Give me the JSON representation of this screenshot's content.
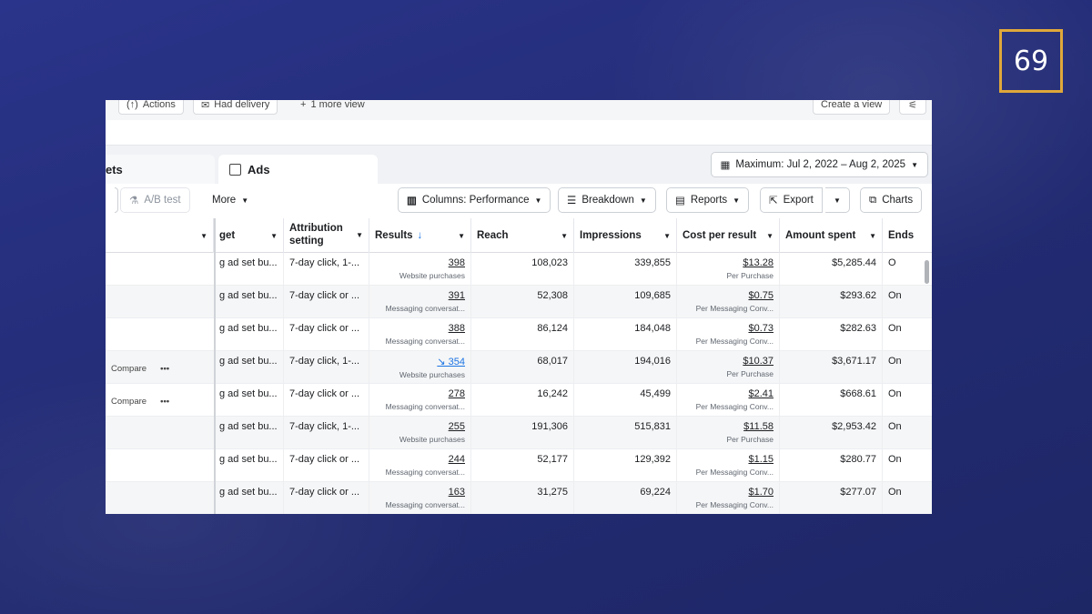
{
  "slide_number": "69",
  "top_chips": {
    "actions": "Actions",
    "had_delivery": "Had delivery",
    "more_view": "1 more view",
    "create_view": "Create a view"
  },
  "tabs": {
    "ad_sets_partial": "ets",
    "ads": "Ads"
  },
  "date_range": "Maximum: Jul 2, 2022 – Aug 2, 2025",
  "toolbar": {
    "ab_test": "A/B test",
    "more": "More",
    "columns": "Columns: Performance",
    "breakdown": "Breakdown",
    "reports": "Reports",
    "export": "Export",
    "charts": "Charts"
  },
  "columns": {
    "budget": "get",
    "attribution": "Attribution setting",
    "results": "Results",
    "reach": "Reach",
    "impressions": "Impressions",
    "cost_per_result": "Cost per result",
    "amount_spent": "Amount spent",
    "ends": "Ends"
  },
  "rows": [
    {
      "compare": "",
      "menu": "",
      "budget": "g ad set bu...",
      "attribution": "7-day click, 1-...",
      "results": "398",
      "results_sub": "Website purchases",
      "reach": "108,023",
      "impressions": "339,855",
      "cpr": "$13.28",
      "cpr_sub": "Per Purchase",
      "spent": "$5,285.44",
      "ends": "O"
    },
    {
      "compare": "",
      "menu": "",
      "budget": "g ad set bu...",
      "attribution": "7-day click or ...",
      "results": "391",
      "results_sub": "Messaging conversat...",
      "reach": "52,308",
      "impressions": "109,685",
      "cpr": "$0.75",
      "cpr_sub": "Per Messaging Conv...",
      "spent": "$293.62",
      "ends": "On"
    },
    {
      "compare": "",
      "menu": "",
      "budget": "g ad set bu...",
      "attribution": "7-day click or ...",
      "results": "388",
      "results_sub": "Messaging conversat...",
      "reach": "86,124",
      "impressions": "184,048",
      "cpr": "$0.73",
      "cpr_sub": "Per Messaging Conv...",
      "spent": "$282.63",
      "ends": "On"
    },
    {
      "compare": "Compare",
      "menu": "•••",
      "budget": "g ad set bu...",
      "attribution": "7-day click, 1-...",
      "results": "354",
      "results_sub": "Website purchases",
      "reach": "68,017",
      "impressions": "194,016",
      "cpr": "$10.37",
      "cpr_sub": "Per Purchase",
      "spent": "$3,671.17",
      "ends": "On"
    },
    {
      "compare": "Compare",
      "menu": "•••",
      "budget": "g ad set bu...",
      "attribution": "7-day click or ...",
      "results": "278",
      "results_sub": "Messaging conversat...",
      "reach": "16,242",
      "impressions": "45,499",
      "cpr": "$2.41",
      "cpr_sub": "Per Messaging Conv...",
      "spent": "$668.61",
      "ends": "On"
    },
    {
      "compare": "",
      "menu": "",
      "budget": "g ad set bu...",
      "attribution": "7-day click, 1-...",
      "results": "255",
      "results_sub": "Website purchases",
      "reach": "191,306",
      "impressions": "515,831",
      "cpr": "$11.58",
      "cpr_sub": "Per Purchase",
      "spent": "$2,953.42",
      "ends": "On"
    },
    {
      "compare": "",
      "menu": "",
      "budget": "g ad set bu...",
      "attribution": "7-day click or ...",
      "results": "244",
      "results_sub": "Messaging conversat...",
      "reach": "52,177",
      "impressions": "129,392",
      "cpr": "$1.15",
      "cpr_sub": "Per Messaging Conv...",
      "spent": "$280.77",
      "ends": "On"
    },
    {
      "compare": "",
      "menu": "",
      "budget": "g ad set bu...",
      "attribution": "7-day click or ...",
      "results": "163",
      "results_sub": "Messaging conversat...",
      "reach": "31,275",
      "impressions": "69,224",
      "cpr": "$1.70",
      "cpr_sub": "Per Messaging Conv...",
      "spent": "$277.07",
      "ends": "On"
    }
  ],
  "colors": {
    "background": "#26307a",
    "badge_border": "#e0a83a",
    "link_blue": "#1b74e4"
  }
}
